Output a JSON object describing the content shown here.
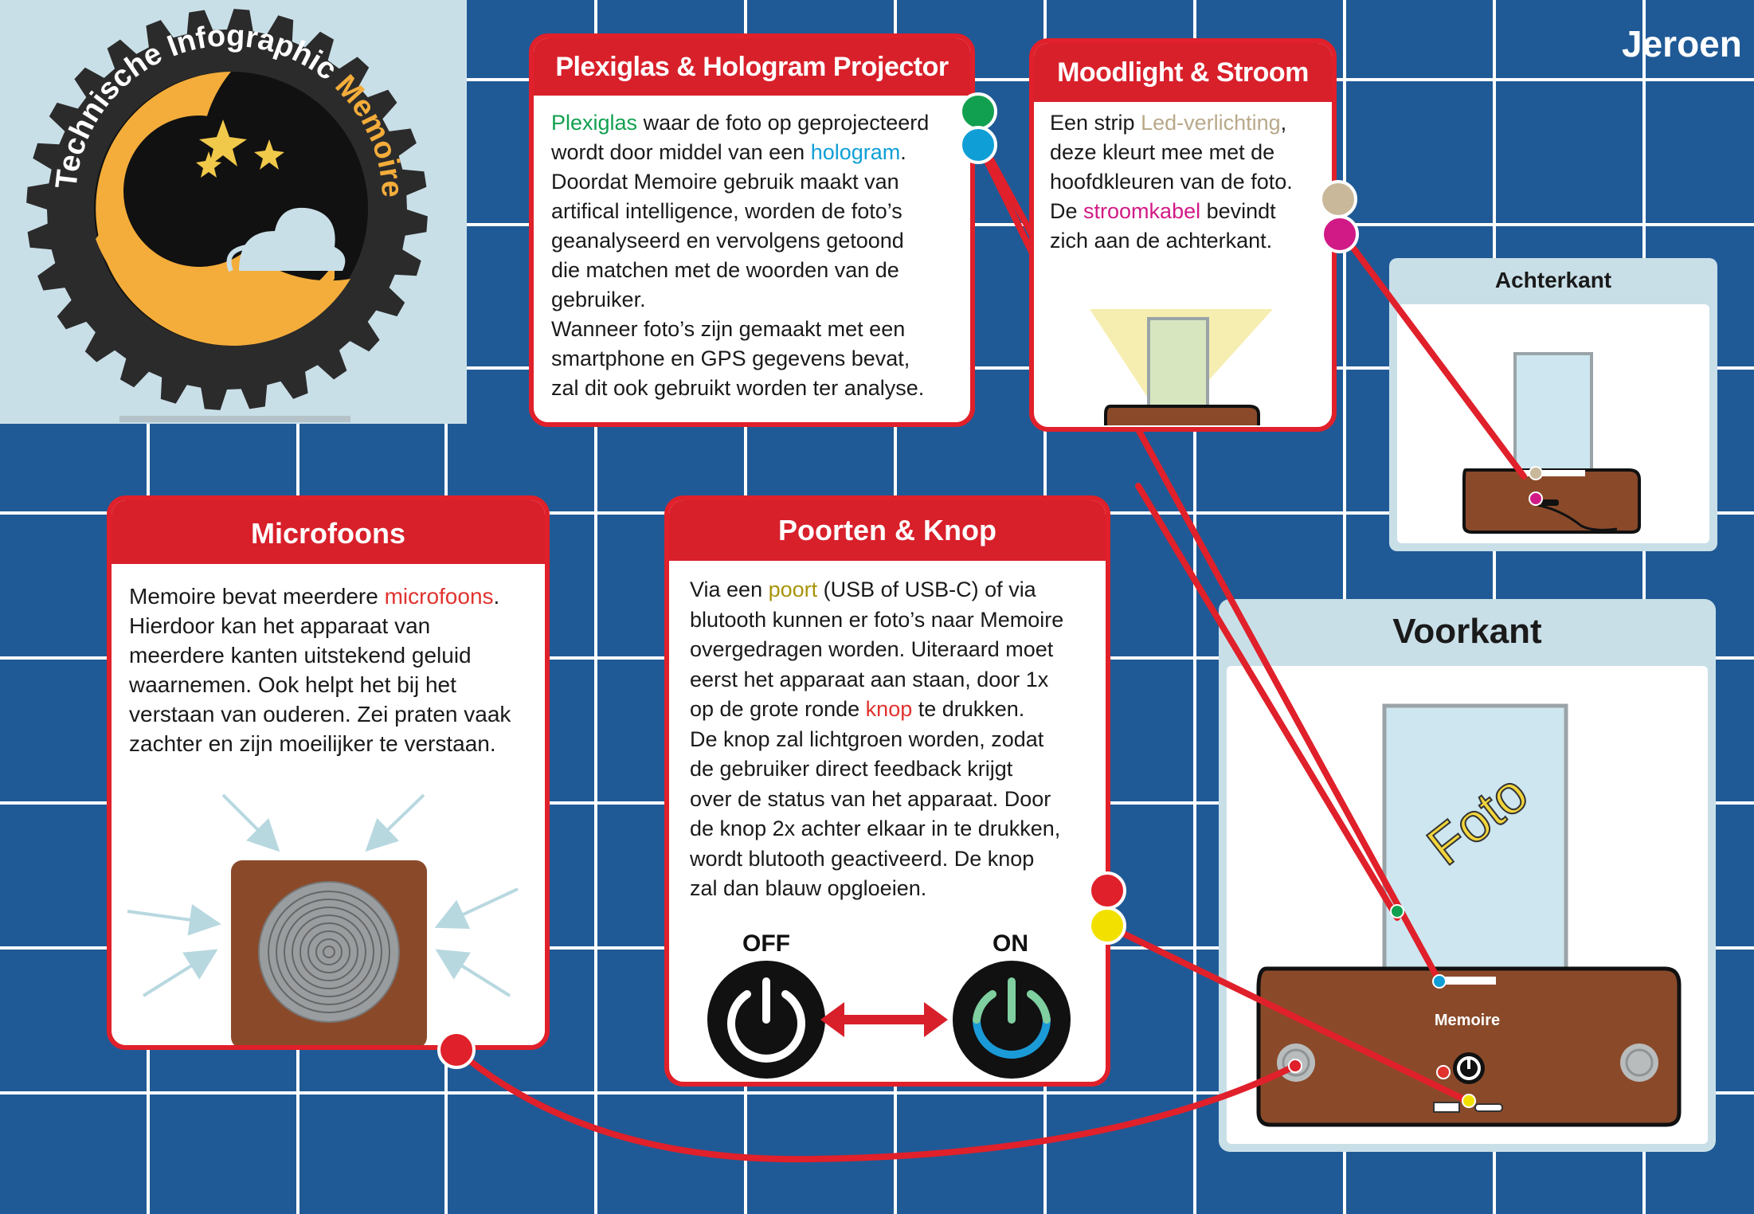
{
  "author": "Jeroen",
  "logo": {
    "arc_text_prefix": "Technische Infographic ",
    "arc_text_accent": "Memoire",
    "icon": "moon-stars-cloud-gear-logo"
  },
  "cards": {
    "plexiglas": {
      "title": "Plexiglas & Hologram Projector",
      "word1": "Plexiglas",
      "text1": " waar de foto op geprojecteerd",
      "text2": "wordt door middel van een ",
      "word2": "hologram",
      "text3": ".",
      "lines": [
        "Doordat Memoire gebruik maakt van",
        "artifical intelligence, worden de foto’s",
        "geanalyseerd en vervolgens getoond",
        "die matchen met de woorden van de",
        "gebruiker.",
        "Wanneer foto’s zijn gemaakt met een",
        "smartphone en GPS gegevens bevat,",
        "zal dit ook gebruikt worden ter analyse."
      ]
    },
    "moodlight": {
      "title": "Moodlight & Stroom",
      "l1a": "Een strip ",
      "l1w": "Led-verlichting",
      "l1b": ",",
      "l2": "deze kleurt mee met de",
      "l3": "hoofdkleuren van de foto.",
      "l4a": "De ",
      "l4w": "stroomkabel",
      "l4b": " bevindt",
      "l5": "zich aan de achterkant."
    },
    "microfoons": {
      "title": "Microfoons",
      "l1a": "Memoire bevat meerdere ",
      "l1w": "microfoons",
      "l1b": ".",
      "lines": [
        "Hierdoor kan het apparaat van",
        "meerdere kanten uitstekend geluid",
        "waarnemen. Ook helpt het bij het",
        "verstaan van ouderen. Zei praten vaak",
        "zachter en zijn moeilijker te verstaan."
      ]
    },
    "poorten": {
      "title": "Poorten & Knop",
      "l1a": "Via een ",
      "l1w": "poort",
      "l1b": " (USB of USB-C) of via",
      "lines_a": [
        "blutooth kunnen er foto’s naar Memoire",
        "overgedragen worden. Uiteraard moet",
        "eerst het apparaat aan staan, door 1x"
      ],
      "l5a": "op de grote ronde ",
      "l5w": "knop",
      "l5b": " te drukken.",
      "lines_b": [
        "De knop zal lichtgroen worden, zodat",
        "de gebruiker direct feedback krijgt",
        "over de status van het apparaat. Door",
        "de knop 2x achter elkaar in te drukken,",
        "wordt blutooth geactiveerd. De knop",
        "zal dan blauw opgloeien."
      ],
      "off_label": "OFF",
      "on_label": "ON"
    }
  },
  "panels": {
    "achterkant": {
      "title": "Achterkant"
    },
    "voorkant": {
      "title": "Voorkant",
      "photo_label": "Foto",
      "device_label": "Memoire"
    }
  },
  "colors": {
    "background": "#205a96",
    "grid_lines": "#ffffff",
    "card_border": "#e0202a",
    "panel_bg": "#c9dfe8",
    "device_wood": "#8a4a2a",
    "photo_glass": "#cde6ef",
    "connector_red": "#e0202a",
    "dot_green": "#11a04f",
    "dot_blue": "#0f9fd6",
    "dot_beige": "#c9b89a",
    "dot_magenta": "#d11a86",
    "dot_yellow": "#f2e100"
  }
}
